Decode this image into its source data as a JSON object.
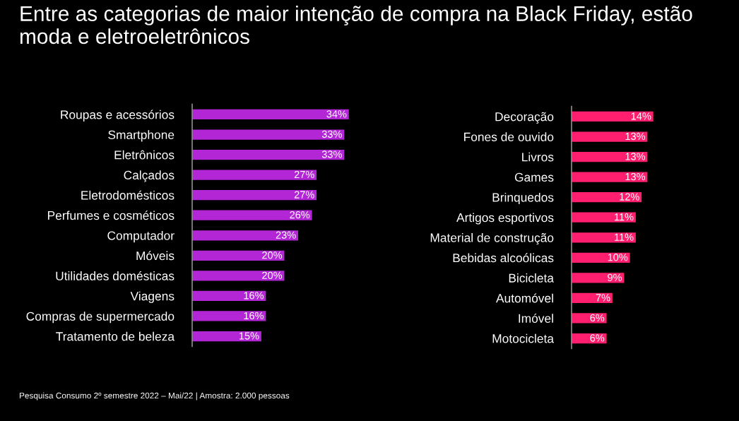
{
  "chart_data": [
    {
      "type": "bar",
      "orientation": "horizontal",
      "title": "Entre as categorias de maior intenção de compra na Black Friday, estão moda e eletroeletrônicos",
      "annotations": [
        "Pesquisa Consumo 2º semestre 2022 – Mai/22 | Amostra: 2.000 pessoas"
      ],
      "categories": [
        "Roupas e acessórios",
        "Smartphone",
        "Eletrônicos",
        "Calçados",
        "Eletrodomésticos",
        "Perfumes e cosméticos",
        "Computador",
        "Móveis",
        "Utilidades domésticas",
        "Viagens",
        "Compras de supermercado",
        "Tratamento de beleza"
      ],
      "values": [
        34,
        33,
        33,
        27,
        27,
        26,
        23,
        20,
        20,
        16,
        16,
        15
      ],
      "value_labels": [
        "34%",
        "33%",
        "33%",
        "27%",
        "27%",
        "26%",
        "23%",
        "20%",
        "20%",
        "16%",
        "16%",
        "15%"
      ],
      "color": "#b326d6"
    },
    {
      "type": "bar",
      "orientation": "horizontal",
      "categories": [
        "Decoração",
        "Fones de ouvido",
        "Livros",
        "Games",
        "Brinquedos",
        "Artigos esportivos",
        "Material de construção",
        "Bebidas alcoólicas",
        "Bicicleta",
        "Automóvel",
        "Imóvel",
        "Motocicleta"
      ],
      "values": [
        14,
        13,
        13,
        13,
        12,
        11,
        11,
        10,
        9,
        7,
        6,
        6
      ],
      "value_labels": [
        "14%",
        "13%",
        "13%",
        "13%",
        "12%",
        "11%",
        "11%",
        "10%",
        "9%",
        "7%",
        "6%",
        "6%"
      ],
      "color": "#ff1f6e"
    }
  ]
}
